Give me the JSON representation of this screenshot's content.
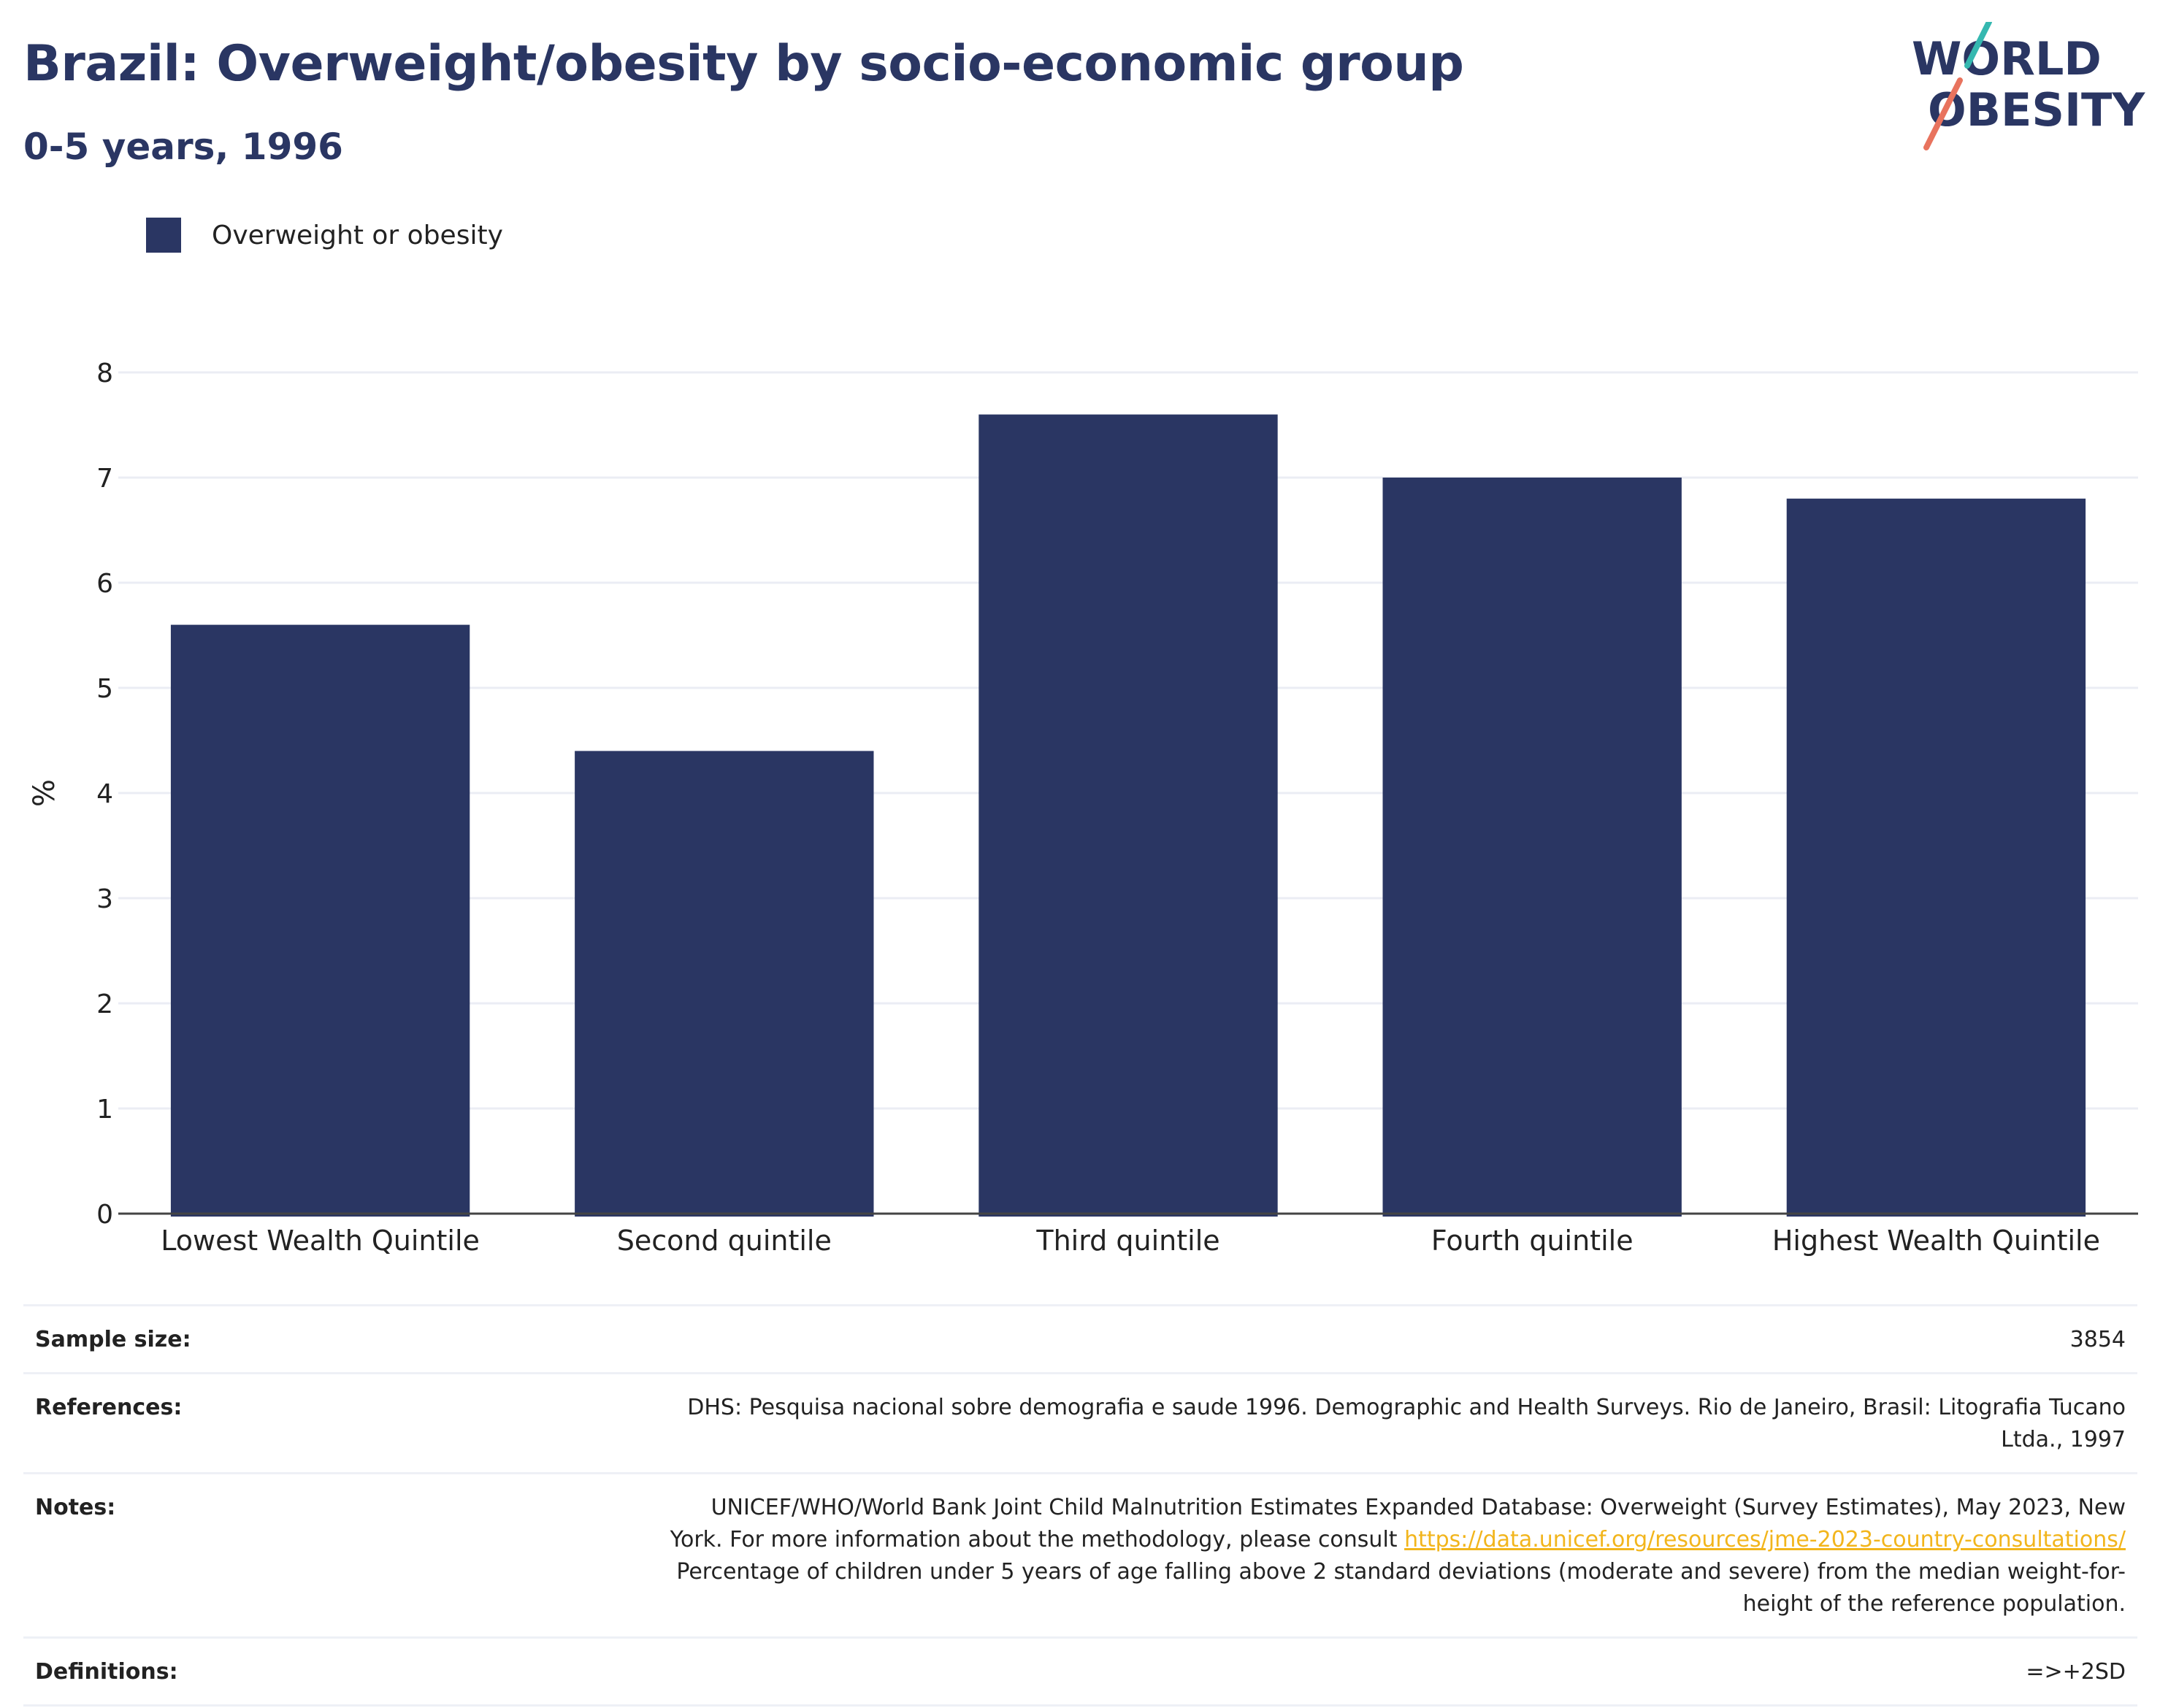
{
  "header": {
    "title": "Brazil: Overweight/obesity by socio-economic group",
    "subtitle": "0-5 years, 1996"
  },
  "logo": {
    "line1": "WORLD",
    "line2": "OBESITY",
    "colors": {
      "navy": "#2a3663",
      "teal": "#35b8b0",
      "coral": "#e8735e"
    }
  },
  "legend": {
    "label": "Overweight or obesity",
    "color": "#2a3663"
  },
  "chart_data": {
    "type": "bar",
    "categories": [
      "Lowest Wealth Quintile",
      "Second quintile",
      "Third quintile",
      "Fourth quintile",
      "Highest Wealth Quintile"
    ],
    "series": [
      {
        "name": "Overweight or obesity",
        "values": [
          5.6,
          4.4,
          7.6,
          7.0,
          6.8
        ],
        "color": "#2a3663"
      }
    ],
    "ylabel": "%",
    "ylim": [
      0,
      8
    ],
    "yticks": [
      0,
      1,
      2,
      3,
      4,
      5,
      6,
      7,
      8
    ],
    "grid": true,
    "legend_position": "top-left"
  },
  "info": {
    "sample_size": {
      "label": "Sample size:",
      "value": "3854"
    },
    "references": {
      "label": "References:",
      "line1": "DHS: Pesquisa nacional sobre demografia e saude 1996. Demographic and Health Surveys. Rio de Janeiro, Brasil: Litografia Tucano",
      "line2": "Ltda., 1997"
    },
    "notes": {
      "label": "Notes:",
      "line1": "UNICEF/WHO/World Bank Joint Child Malnutrition Estimates Expanded Database: Overweight (Survey Estimates), May 2023, New",
      "line2_prefix": "York. For more information about the methodology, please consult ",
      "link": "https://data.unicef.org/resources/jme-2023-country-consultations/",
      "line3": "Percentage of children under 5 years of age falling above 2 standard deviations (moderate and severe) from the median weight-for-",
      "line4": "height of the reference population."
    },
    "definitions": {
      "label": "Definitions:",
      "value": "=>+2SD"
    }
  }
}
